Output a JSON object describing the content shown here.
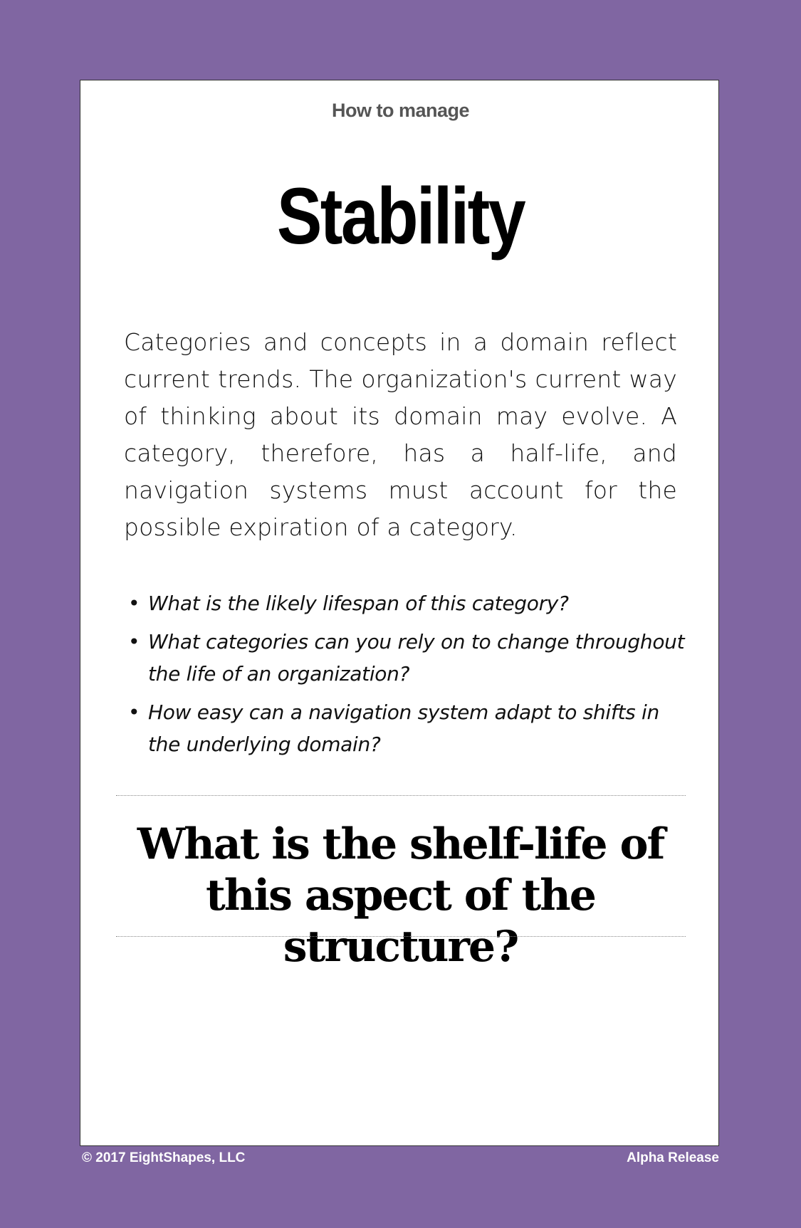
{
  "card": {
    "eyebrow": "How to manage",
    "title": "Stability",
    "body": "Categories and concepts in a domain reflect current trends. The organization's current way of thinking about its domain may evolve. A category, therefore, has a half-life, and navigation systems must account for the possible expiration of a category.",
    "questions": [
      "What is the likely lifespan of this category?",
      "What categories can you rely on to change throughout the life of an organization?",
      "How easy can a navigation system adapt to shifts in the underlying domain?"
    ],
    "bullet": "•",
    "prompt": "What is the shelf-life of this aspect of the structure?"
  },
  "footer": {
    "copyright": "© 2017 EightShapes, LLC",
    "release": "Alpha Release"
  },
  "colors": {
    "background": "#8066a2",
    "card": "#ffffff",
    "text": "#000000"
  }
}
